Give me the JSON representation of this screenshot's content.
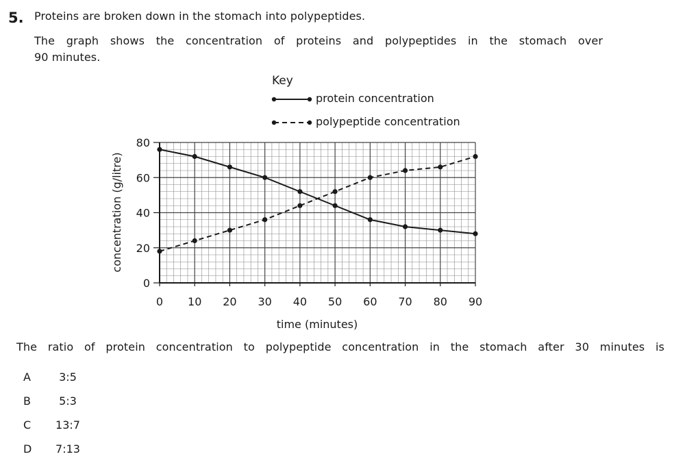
{
  "question": {
    "number": "5.",
    "intro": "Proteins are broken down in the stomach into polypeptides.",
    "description_line1": "The graph shows the concentration of proteins and polypeptides in the stomach over",
    "description_line2": "90 minutes.",
    "stem": "The ratio of protein concentration to polypeptide concentration in the stomach after 30 minutes is",
    "options": [
      {
        "letter": "A",
        "value": "3:5"
      },
      {
        "letter": "B",
        "value": "5:3"
      },
      {
        "letter": "C",
        "value": "13:7"
      },
      {
        "letter": "D",
        "value": "7:13"
      }
    ]
  },
  "chart_data": {
    "type": "line",
    "title": "",
    "key_title": "Key",
    "xlabel": "time (minutes)",
    "ylabel": "concentration (g/litre)",
    "xlim": [
      0,
      90
    ],
    "ylim": [
      0,
      80
    ],
    "x_ticks": [
      0,
      10,
      20,
      30,
      40,
      50,
      60,
      70,
      80,
      90
    ],
    "y_ticks": [
      0,
      20,
      40,
      60,
      80
    ],
    "grid": true,
    "legend_position": "top-right",
    "x": [
      0,
      10,
      20,
      30,
      40,
      50,
      60,
      70,
      80,
      90
    ],
    "series": [
      {
        "name": "protein concentration",
        "style": "solid",
        "color": "#1a1a1a",
        "values": [
          76,
          72,
          66,
          60,
          52,
          44,
          36,
          32,
          30,
          28
        ]
      },
      {
        "name": "polypeptide concentration",
        "style": "dashed",
        "color": "#1a1a1a",
        "values": [
          18,
          24,
          30,
          36,
          44,
          52,
          60,
          64,
          66,
          72
        ]
      }
    ]
  }
}
